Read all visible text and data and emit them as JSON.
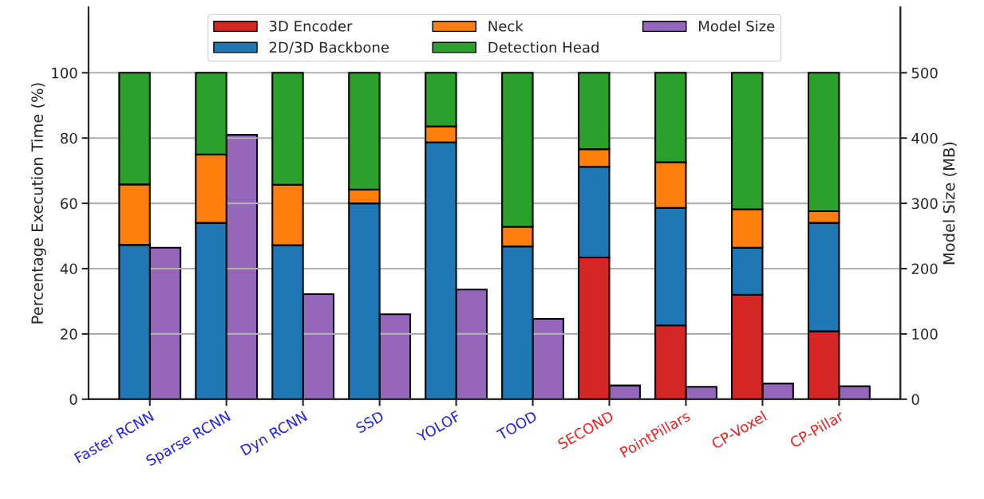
{
  "chart_data": {
    "type": "bar",
    "stacked": true,
    "categories": [
      "Faster RCNN",
      "Sparse RCNN",
      "Dyn RCNN",
      "SSD",
      "YOLOF",
      "TOOD",
      "SECOND",
      "PointPillars",
      "CP-Voxel",
      "CP-Pillar"
    ],
    "series": [
      {
        "name": "3D Encoder",
        "color": "#d62728",
        "values": [
          null,
          null,
          null,
          null,
          null,
          null,
          43.4,
          22.6,
          32,
          20.8
        ]
      },
      {
        "name": "2D/3D Backbone",
        "color": "#1f77b4",
        "values": [
          47.3,
          54,
          47.2,
          60,
          78.7,
          46.8,
          27.8,
          36,
          14.4,
          33.2
        ]
      },
      {
        "name": "Neck",
        "color": "#ff7f0e",
        "values": [
          18.5,
          21,
          18.5,
          4.2,
          4.9,
          6,
          5.4,
          14,
          11.8,
          3.6
        ]
      },
      {
        "name": "Detection Head",
        "color": "#2ca02c",
        "values": [
          34.2,
          25,
          34.3,
          35.8,
          16.4,
          47.2,
          23.4,
          27.4,
          41.8,
          42.4
        ]
      },
      {
        "name": "Model Size",
        "color": "#9467bd",
        "axis": "y2",
        "values": [
          232,
          405,
          161,
          130,
          168,
          123,
          21,
          19,
          24,
          20
        ]
      }
    ],
    "ylabel": "Percentage Execution Time (%)",
    "y2label": "Model Size (MB)",
    "ylim": [
      0,
      120
    ],
    "yticks": [
      0,
      20,
      40,
      60,
      80,
      100
    ],
    "y2lim": [
      0,
      600
    ],
    "y2ticks": [
      0,
      100,
      200,
      300,
      400,
      500
    ],
    "grid": "y",
    "legend": "top"
  }
}
